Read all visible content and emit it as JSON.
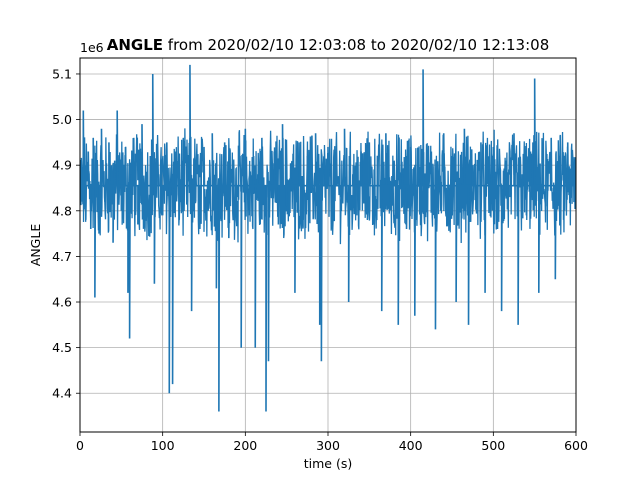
{
  "chart_data": {
    "type": "line",
    "title_bold": "ANGLE",
    "title_rest": " from 2020/02/10 12:03:08 to 2020/02/10 12:13:08",
    "xlabel": "time (s)",
    "ylabel": "ANGLE",
    "offset_label": "1e6",
    "xlim": [
      0,
      600
    ],
    "ylim": [
      4.315,
      5.135
    ],
    "x_ticks": [
      0,
      100,
      200,
      300,
      400,
      500,
      600
    ],
    "y_ticks": [
      4.4,
      4.5,
      4.6,
      4.7,
      4.8,
      4.9,
      5.0,
      5.1
    ],
    "x_tick_labels": [
      "0",
      "100",
      "200",
      "300",
      "400",
      "500",
      "600"
    ],
    "y_tick_labels": [
      "4.4",
      "4.5",
      "4.6",
      "4.7",
      "4.8",
      "4.9",
      "5.0",
      "5.1"
    ],
    "grid": true,
    "series_color": "#1f77b4",
    "series": [
      {
        "x": [
          0,
          2,
          4,
          7,
          10,
          13,
          16,
          18,
          20,
          23,
          26,
          30,
          35,
          40,
          42,
          45,
          50,
          55,
          58,
          60,
          62,
          65,
          70,
          75,
          80,
          85,
          88,
          90,
          95,
          100,
          105,
          108,
          110,
          112,
          115,
          120,
          125,
          130,
          133,
          135,
          140,
          145,
          150,
          155,
          160,
          165,
          168,
          170,
          175,
          180,
          185,
          190,
          195,
          200,
          205,
          210,
          212,
          215,
          220,
          225,
          228,
          230,
          235,
          240,
          245,
          250,
          255,
          260,
          265,
          270,
          275,
          280,
          285,
          290,
          292,
          295,
          300,
          305,
          310,
          315,
          320,
          325,
          330,
          335,
          340,
          345,
          350,
          355,
          360,
          365,
          370,
          375,
          380,
          385,
          390,
          395,
          400,
          405,
          410,
          415,
          420,
          425,
          430,
          435,
          440,
          445,
          450,
          455,
          460,
          465,
          470,
          475,
          480,
          485,
          490,
          495,
          500,
          505,
          510,
          515,
          520,
          525,
          530,
          535,
          540,
          545,
          550,
          555,
          560,
          565,
          570,
          575,
          580,
          585,
          590,
          595,
          600
        ],
        "y": [
          4.87,
          4.82,
          5.02,
          4.78,
          4.93,
          4.76,
          4.96,
          4.61,
          4.9,
          4.75,
          4.98,
          4.82,
          4.95,
          4.73,
          4.91,
          5.02,
          4.8,
          4.94,
          4.62,
          4.52,
          4.88,
          4.96,
          4.77,
          4.99,
          4.83,
          4.92,
          5.1,
          4.64,
          4.88,
          4.79,
          4.95,
          4.4,
          4.87,
          4.42,
          4.93,
          4.78,
          4.96,
          4.82,
          5.12,
          4.58,
          4.89,
          4.76,
          4.94,
          4.8,
          4.97,
          4.63,
          4.36,
          4.86,
          4.95,
          4.74,
          4.91,
          4.83,
          4.5,
          4.98,
          4.79,
          4.92,
          4.5,
          4.88,
          4.96,
          4.36,
          4.47,
          4.86,
          4.93,
          4.77,
          4.99,
          4.81,
          4.9,
          4.62,
          4.95,
          4.78,
          4.92,
          4.84,
          4.97,
          4.55,
          4.47,
          4.89,
          4.94,
          4.76,
          4.91,
          4.83,
          4.98,
          4.6,
          4.88,
          4.79,
          4.93,
          4.86,
          4.95,
          4.77,
          4.9,
          4.58,
          4.97,
          4.82,
          4.91,
          4.55,
          4.88,
          4.76,
          4.94,
          4.57,
          4.87,
          5.11,
          4.8,
          4.93,
          4.54,
          4.89,
          4.97,
          4.78,
          4.92,
          4.6,
          4.86,
          4.98,
          4.55,
          4.9,
          4.8,
          4.95,
          4.62,
          4.89,
          4.94,
          4.76,
          4.58,
          4.91,
          4.83,
          4.97,
          4.55,
          4.88,
          4.79,
          4.93,
          5.09,
          4.62,
          4.9,
          4.81,
          4.96,
          4.65,
          4.92,
          4.78,
          4.95,
          4.86,
          4.88
        ]
      }
    ]
  }
}
